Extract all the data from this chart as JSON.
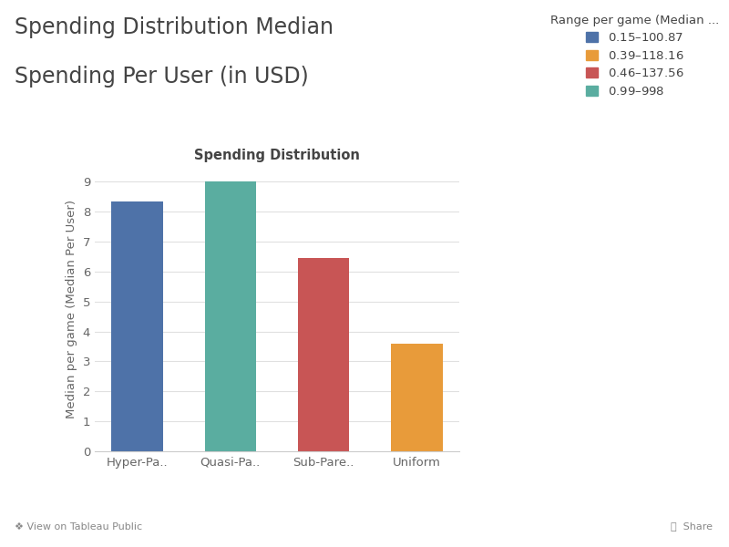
{
  "title_line1": "Spending Distribution Median",
  "title_line2": "Spending Per User (in USD)",
  "chart_title": "Spending Distribution",
  "ylabel": "Median per game (Median Per User)",
  "categories": [
    "Hyper-Pa..",
    "Quasi-Pa..",
    "Sub-Pare..",
    "Uniform"
  ],
  "values": [
    8.33,
    9.0,
    6.47,
    3.6
  ],
  "bar_colors": [
    "#4e72a8",
    "#5aada0",
    "#c85555",
    "#e89b3a"
  ],
  "legend_title": "Range per game (Median ...",
  "legend_labels": [
    "$0.15–$100.87",
    "$0.39–$118.16",
    "$0.46–$137.56",
    "$0.99–$998"
  ],
  "legend_colors": [
    "#4e72a8",
    "#e89b3a",
    "#c85555",
    "#5aada0"
  ],
  "ylim": [
    0,
    9.5
  ],
  "yticks": [
    0,
    1,
    2,
    3,
    4,
    5,
    6,
    7,
    8,
    9
  ],
  "background_color": "#ffffff",
  "plot_bg_color": "#ffffff",
  "title_fontsize": 17,
  "chart_title_fontsize": 10.5,
  "axis_label_fontsize": 9.5,
  "tick_fontsize": 9.5,
  "legend_fontsize": 9.5,
  "toolbar_bg": "#f5f5f5",
  "toolbar_text_color": "#888888"
}
